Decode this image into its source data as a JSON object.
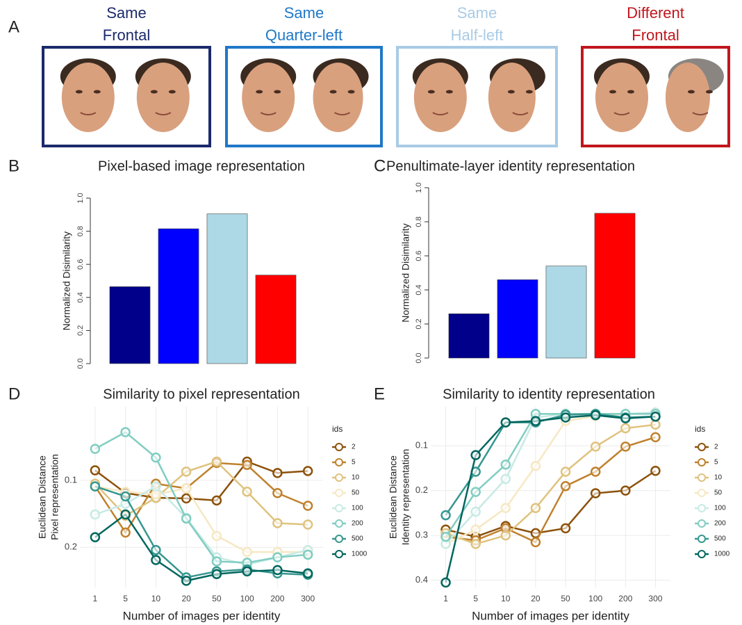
{
  "panel_a": {
    "label": "A",
    "conditions": [
      {
        "lines": [
          "Same",
          "Frontal"
        ],
        "color": "#1b2a6b"
      },
      {
        "lines": [
          "Same",
          "Quarter-left"
        ],
        "color": "#1f78c8"
      },
      {
        "lines": [
          "Same",
          "Half-left"
        ],
        "color": "#a9cbe6"
      },
      {
        "lines": [
          "Different",
          "Frontal"
        ],
        "color": "#c0161c"
      }
    ]
  },
  "chart_data": [
    {
      "type": "bar",
      "panel_label": "B",
      "title": "Pixel-based image representation",
      "ylabel": "Normalized Disimilarity",
      "values": [
        0.465,
        0.815,
        0.905,
        0.535
      ],
      "colors": [
        "#00008b",
        "#0000ff",
        "#add8e6",
        "#ff0000"
      ],
      "ylim": [
        0,
        1
      ],
      "yticks": [
        {
          "value": 0,
          "label": "0.0"
        },
        {
          "value": 0.2,
          "label": "0.2"
        },
        {
          "value": 0.4,
          "label": "0.4"
        },
        {
          "value": 0.6,
          "label": "0.6"
        },
        {
          "value": 0.8,
          "label": "0.8"
        },
        {
          "value": 1,
          "label": "1.0"
        }
      ]
    },
    {
      "type": "bar",
      "panel_label": "C",
      "title": "Penultimate-layer identity representation",
      "ylabel": "Normalized Disimilarity",
      "values": [
        0.26,
        0.46,
        0.54,
        0.85
      ],
      "colors": [
        "#00008b",
        "#0000ff",
        "#add8e6",
        "#ff0000"
      ],
      "ylim": [
        0,
        1
      ],
      "yticks": [
        {
          "value": 0,
          "label": "0.0"
        },
        {
          "value": 0.2,
          "label": "0.2"
        },
        {
          "value": 0.4,
          "label": "0.4"
        },
        {
          "value": 0.6,
          "label": "0.6"
        },
        {
          "value": 0.8,
          "label": "0.8"
        },
        {
          "value": 1,
          "label": "1.0"
        }
      ]
    },
    {
      "type": "line",
      "panel_label": "D",
      "title": "Similarity to pixel representation",
      "xlabel": "Number of images per identity",
      "ylabel": [
        "Euclidean Distance",
        "Pixel representation"
      ],
      "categories": [
        "1",
        "5",
        "10",
        "20",
        "50",
        "100",
        "200",
        "300"
      ],
      "ylim": [
        -0.01,
        0.26
      ],
      "y_inverted": true,
      "grid": true,
      "yticks": [
        0.1,
        0.2
      ],
      "legend_title": "ids",
      "series": [
        {
          "name": "2",
          "color": "#8c510a",
          "values": [
            0.085,
            0.119,
            0.126,
            0.127,
            0.13,
            0.072,
            0.089,
            0.086
          ]
        },
        {
          "name": "5",
          "color": "#bf812d",
          "values": [
            0.109,
            0.178,
            0.105,
            0.112,
            0.074,
            0.077,
            0.119,
            0.138
          ]
        },
        {
          "name": "10",
          "color": "#dfc27d",
          "values": [
            0.105,
            0.153,
            0.126,
            0.087,
            0.072,
            0.117,
            0.164,
            0.166
          ]
        },
        {
          "name": "50",
          "color": "#f6e8c3",
          "values": [
            0.109,
            0.117,
            0.121,
            0.112,
            0.183,
            0.207,
            0.207,
            0.207
          ]
        },
        {
          "name": "100",
          "color": "#c7eae5",
          "values": [
            0.151,
            0.135,
            0.109,
            0.156,
            0.215,
            0.226,
            0.215,
            0.204
          ]
        },
        {
          "name": "200",
          "color": "#80cdc1",
          "values": [
            0.053,
            0.028,
            0.066,
            0.157,
            0.221,
            0.223,
            0.215,
            0.211
          ]
        },
        {
          "name": "500",
          "color": "#35978f",
          "values": [
            0.109,
            0.124,
            0.204,
            0.245,
            0.236,
            0.233,
            0.239,
            0.241
          ]
        },
        {
          "name": "1000",
          "color": "#01665e",
          "values": [
            0.185,
            0.151,
            0.219,
            0.25,
            0.24,
            0.236,
            0.234,
            0.239
          ]
        }
      ]
    },
    {
      "type": "line",
      "panel_label": "E",
      "title": "Similarity to identity representation",
      "xlabel": "Number of images per identity",
      "ylabel": [
        "Euclidean Distance",
        "Identity representation"
      ],
      "categories": [
        "1",
        "5",
        "10",
        "20",
        "50",
        "100",
        "200",
        "300"
      ],
      "ylim": [
        0.013,
        0.416
      ],
      "y_inverted": true,
      "grid": true,
      "yticks": [
        0.1,
        0.2,
        0.3,
        0.4
      ],
      "legend_title": "ids",
      "series": [
        {
          "name": "2",
          "color": "#8c510a",
          "values": [
            0.287,
            0.303,
            0.279,
            0.295,
            0.284,
            0.206,
            0.2,
            0.156
          ]
        },
        {
          "name": "5",
          "color": "#bf812d",
          "values": [
            0.303,
            0.311,
            0.284,
            0.315,
            0.19,
            0.158,
            0.102,
            0.081
          ]
        },
        {
          "name": "10",
          "color": "#dfc27d",
          "values": [
            0.295,
            0.319,
            0.3,
            0.239,
            0.158,
            0.102,
            0.061,
            0.053
          ]
        },
        {
          "name": "50",
          "color": "#f6e8c3",
          "values": [
            0.319,
            0.287,
            0.239,
            0.145,
            0.045,
            0.034,
            0.029,
            0.026
          ]
        },
        {
          "name": "100",
          "color": "#c7eae5",
          "values": [
            0.319,
            0.247,
            0.174,
            0.037,
            0.029,
            0.029,
            0.029,
            0.026
          ]
        },
        {
          "name": "200",
          "color": "#80cdc1",
          "values": [
            0.303,
            0.203,
            0.142,
            0.029,
            0.029,
            0.029,
            0.029,
            0.029
          ]
        },
        {
          "name": "500",
          "color": "#35978f",
          "values": [
            0.255,
            0.158,
            0.048,
            0.048,
            0.031,
            0.029,
            0.037,
            0.035
          ]
        },
        {
          "name": "1000",
          "color": "#01665e",
          "values": [
            0.405,
            0.121,
            0.048,
            0.045,
            0.037,
            0.032,
            0.039,
            0.035
          ]
        }
      ]
    }
  ]
}
